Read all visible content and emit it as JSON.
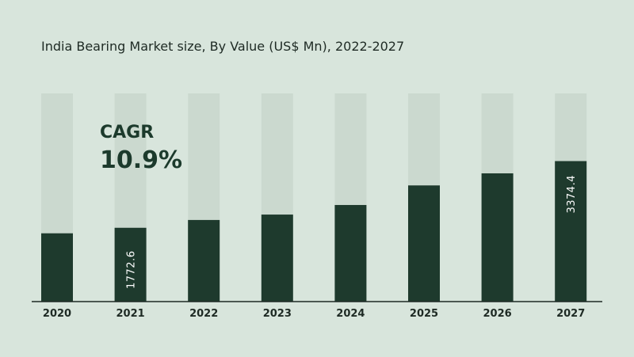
{
  "chart_data": {
    "type": "bar",
    "title": "India Bearing Market size, By Value (US$ Mn), 2022-2027",
    "categories": [
      "2020",
      "2021",
      "2022",
      "2023",
      "2024",
      "2025",
      "2026",
      "2027"
    ],
    "values": [
      1640,
      1772.6,
      1960,
      2090,
      2320,
      2790,
      3080,
      3374.4
    ],
    "data_labels": {
      "1": "1772.6",
      "7": "3374.4"
    },
    "xlabel": "",
    "ylabel": "",
    "ylim": [
      0,
      5000
    ],
    "grid": false,
    "legend": "none",
    "cagr": {
      "label": "CAGR",
      "value": "10.9%"
    },
    "colors": {
      "background": "#d8e5dc",
      "track": "#cbd9cf",
      "bar": "#1e3a2d",
      "axis": "#1e2a24",
      "text": "#1e2a24"
    }
  }
}
